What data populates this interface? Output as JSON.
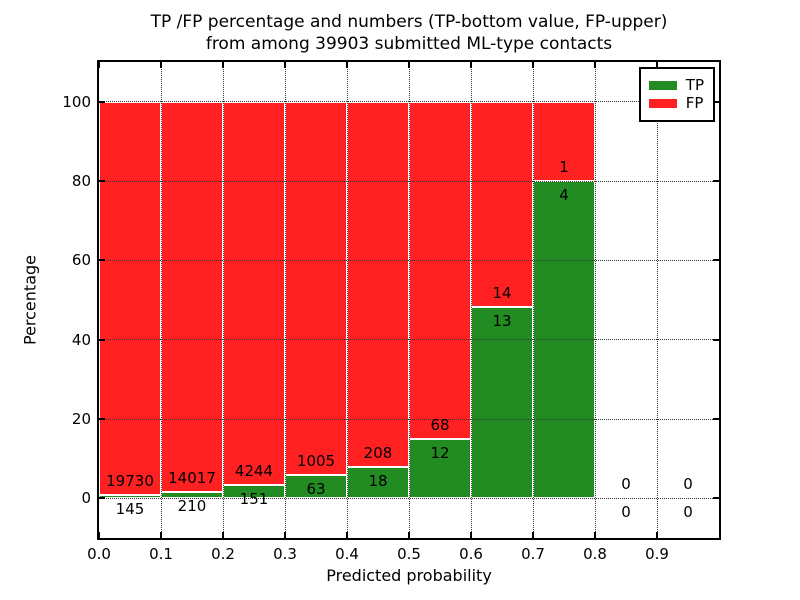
{
  "title": {
    "line1": "TP /FP percentage and numbers (TP-bottom value, FP-upper)",
    "line2": "from among 39903 submitted ML-type contacts"
  },
  "chart_data": {
    "type": "bar",
    "stacked": true,
    "normalized_to_percent": true,
    "title": "TP /FP percentage and numbers (TP-bottom value, FP-upper) from among 39903 submitted ML-type contacts",
    "xlabel": "Predicted probability",
    "ylabel": "Percentage",
    "total_contacts": 39903,
    "xlim": [
      0.0,
      1.0
    ],
    "ylim": [
      -10,
      110
    ],
    "bin_width": 0.1,
    "bin_starts": [
      0.0,
      0.1,
      0.2,
      0.3,
      0.4,
      0.5,
      0.6,
      0.7,
      0.8,
      0.9
    ],
    "x_tick_labels": [
      "0.0",
      "0.1",
      "0.2",
      "0.3",
      "0.4",
      "0.5",
      "0.6",
      "0.7",
      "0.8",
      "0.9"
    ],
    "y_ticks": [
      0,
      20,
      40,
      60,
      80,
      100
    ],
    "grid": "dotted",
    "legend_position": "upper right",
    "series": [
      {
        "name": "TP",
        "color": "#228b22",
        "counts": [
          145,
          210,
          151,
          63,
          18,
          12,
          13,
          4,
          0,
          0
        ]
      },
      {
        "name": "FP",
        "color": "#ff2121",
        "counts": [
          19730,
          14017,
          4244,
          1005,
          208,
          68,
          14,
          1,
          0,
          0
        ]
      }
    ],
    "tp_percent": [
      0.73,
      1.48,
      3.44,
      5.9,
      7.96,
      15.0,
      48.15,
      80.0,
      0.0,
      0.0
    ],
    "annotation_rule": "TP count printed below segment boundary, FP count printed above segment boundary",
    "colors": {
      "grid": "#333333",
      "frame": "#000000",
      "background": "#ffffff"
    }
  }
}
